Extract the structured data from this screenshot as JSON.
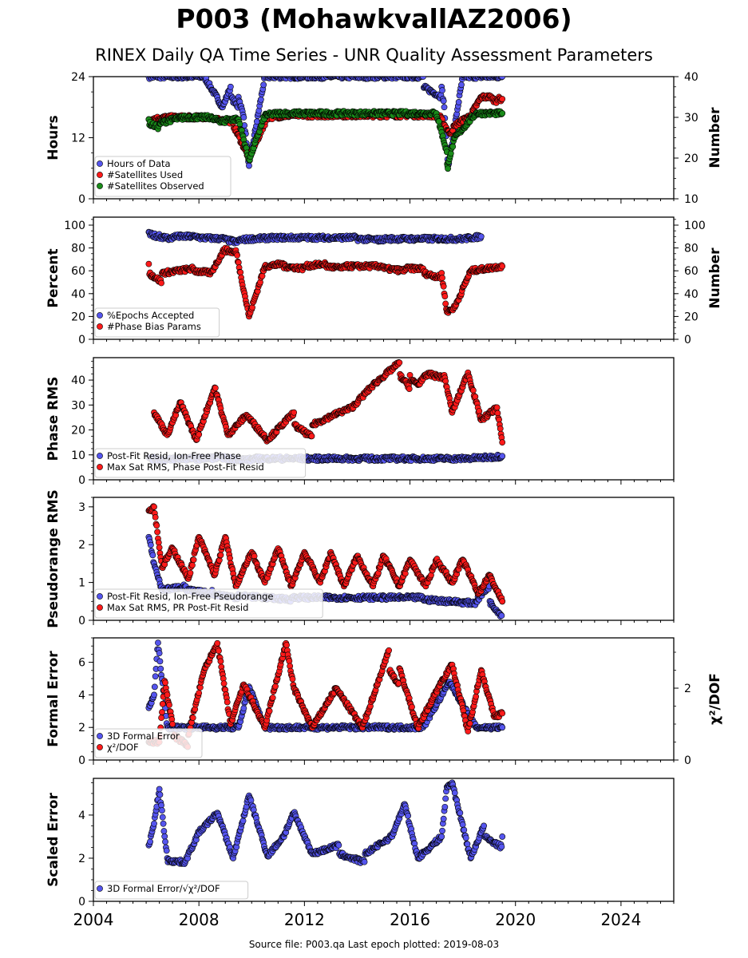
{
  "header": {
    "title": "P003 (MohawkvallAZ2006)",
    "subtitle": "RINEX Daily QA Time Series - UNR Quality Assessment Parameters"
  },
  "footer": {
    "source": "Source file: P003.qa Last epoch plotted: 2019-08-03"
  },
  "colors": {
    "blue": "#5555ee",
    "red": "#ff1a1a",
    "green": "#1a8c1a"
  },
  "chart_data": [
    {
      "type": "scatter",
      "panel": "hours-satellites",
      "ylabel": "Hours",
      "ylim": [
        0,
        24
      ],
      "yticks": [
        0,
        12,
        24
      ],
      "y2label": "Number",
      "y2lim": [
        10,
        40
      ],
      "y2ticks": [
        10,
        20,
        30,
        40
      ],
      "xlim": [
        2004,
        2026
      ],
      "xticks": [
        2004,
        2008,
        2012,
        2016,
        2020,
        2024
      ],
      "legend_position": "lower-left",
      "series": [
        {
          "name": "Hours of Data",
          "axis": "left",
          "color": "#5555ee",
          "x": [
            2006.1,
            2006.8,
            2007.5,
            2008.2,
            2008.9,
            2009.2,
            2009.5,
            2009.7,
            2009.9,
            2010.5,
            2011.5,
            2012.5,
            2013.5,
            2014.5,
            2015.5,
            2016.5,
            2017.2,
            2017.3,
            2017.4,
            2017.5,
            2018.0,
            2018.6,
            2019.2,
            2019.5
          ],
          "y": [
            24,
            24,
            24,
            24,
            18,
            22,
            20,
            16,
            6.5,
            24,
            24,
            24,
            24,
            24,
            24,
            24,
            22,
            18,
            10,
            8,
            24,
            24,
            24,
            24
          ]
        },
        {
          "name": "#Satellites Used",
          "axis": "right",
          "color": "#ff1a1a",
          "x": [
            2006.1,
            2006.8,
            2007.6,
            2008.5,
            2009.2,
            2009.9,
            2010.6,
            2011.5,
            2012.4,
            2013.4,
            2014.3,
            2015.3,
            2016.2,
            2017.1,
            2017.5,
            2017.7,
            2018.3,
            2018.7,
            2018.9,
            2019.1,
            2019.3,
            2019.5
          ],
          "y": [
            29.5,
            30,
            30,
            30,
            29.5,
            20,
            30,
            30.5,
            30.5,
            30.5,
            30.5,
            30.5,
            30.5,
            30.5,
            26,
            28,
            30.5,
            35,
            35,
            35,
            34.5,
            34.5
          ]
        },
        {
          "name": "#Satellites Observed",
          "axis": "right",
          "color": "#1a8c1a",
          "x": [
            2006.1,
            2006.5,
            2007.0,
            2007.5,
            2008.0,
            2008.5,
            2009.0,
            2009.5,
            2009.9,
            2010.5,
            2011.0,
            2012.0,
            2013.0,
            2014.0,
            2015.0,
            2016.0,
            2017.0,
            2017.4,
            2017.45,
            2017.7,
            2018.5,
            2019.0,
            2019.5
          ],
          "y": [
            29.5,
            28.5,
            29.5,
            30,
            30,
            30,
            29.5,
            29.5,
            19.5,
            30.5,
            31,
            31,
            31,
            31,
            31,
            31,
            31,
            21.5,
            19,
            25,
            31,
            31,
            31
          ]
        }
      ]
    },
    {
      "type": "scatter",
      "panel": "epochs-phase-bias",
      "ylabel": "Percent",
      "ylim": [
        0,
        107
      ],
      "yticks": [
        0,
        20,
        40,
        60,
        80,
        100
      ],
      "y2label": "Number",
      "y2lim": [
        0,
        107
      ],
      "y2ticks": [
        0,
        20,
        40,
        60,
        80,
        100
      ],
      "xlim": [
        2004,
        2026
      ],
      "legend_position": "lower-left",
      "series": [
        {
          "name": "%Epochs Accepted",
          "axis": "left",
          "color": "#5555ee",
          "x": [
            2006.1,
            2006.5,
            2007.0,
            2008.0,
            2009.0,
            2009.5,
            2010.0,
            2011.0,
            2012.0,
            2013.0,
            2014.0,
            2015.0,
            2016.0,
            2017.0,
            2018.0,
            2018.7
          ],
          "y": [
            94,
            92,
            90,
            90,
            89,
            87,
            88,
            89,
            89,
            89,
            89,
            88,
            88,
            88,
            88,
            90
          ]
        },
        {
          "name": "#Phase Bias Params",
          "axis": "right",
          "color": "#ff1a1a",
          "x": [
            2006.1,
            2006.6,
            2007.2,
            2007.8,
            2008.5,
            2009.0,
            2009.4,
            2009.9,
            2010.5,
            2011.2,
            2012.0,
            2012.8,
            2013.5,
            2014.3,
            2015.0,
            2015.8,
            2016.5,
            2017.2,
            2017.4,
            2017.7,
            2018.3,
            2018.9,
            2019.5
          ],
          "y": [
            66,
            58,
            60,
            62,
            60,
            80,
            78,
            20,
            64,
            66,
            64,
            66,
            64,
            64,
            64,
            62,
            62,
            58,
            24,
            28,
            60,
            62,
            64
          ]
        }
      ]
    },
    {
      "type": "scatter",
      "panel": "phase-rms",
      "ylabel": "Phase RMS",
      "ylim": [
        0,
        49
      ],
      "yticks": [
        0,
        10,
        20,
        30,
        40
      ],
      "xlim": [
        2004,
        2026
      ],
      "legend_position": "lower-left",
      "series": [
        {
          "name": "Post-Fit Resid, Ion-Free Phase",
          "color": "#5555ee",
          "x": [
            2006.1,
            2007.0,
            2008.0,
            2009.0,
            2010.0,
            2011.0,
            2012.0,
            2013.0,
            2014.0,
            2015.0,
            2016.0,
            2017.0,
            2018.0,
            2019.0,
            2019.5
          ],
          "y": [
            9,
            8.5,
            8.5,
            9,
            8.5,
            8.5,
            8.5,
            8.5,
            8.5,
            8.5,
            8.5,
            8.5,
            8.5,
            9,
            9.5
          ]
        },
        {
          "name": "Max Sat RMS, Phase Post-Fit Resid",
          "color": "#ff1a1a",
          "x": [
            2006.3,
            2006.8,
            2007.3,
            2007.9,
            2008.6,
            2009.1,
            2009.8,
            2010.6,
            2011.6,
            2012.3,
            2013.1,
            2013.8,
            2014.6,
            2015.6,
            2016.0,
            2016.4,
            2016.8,
            2017.3,
            2017.6,
            2018.2,
            2018.7,
            2019.3,
            2019.5
          ],
          "y": [
            27,
            18,
            31,
            16,
            37,
            18,
            26,
            16,
            27,
            22,
            26,
            29,
            38,
            47,
            42,
            40,
            43,
            42,
            27,
            43,
            24,
            29,
            15
          ]
        }
      ]
    },
    {
      "type": "scatter",
      "panel": "pseudorange-rms",
      "ylabel": "Pseudorange RMS",
      "ylim": [
        0,
        3.25
      ],
      "yticks": [
        0,
        1,
        2,
        3
      ],
      "xlim": [
        2004,
        2026
      ],
      "legend_position": "lower-left",
      "series": [
        {
          "name": "Post-Fit Resid, Ion-Free Pseudorange",
          "color": "#5555ee",
          "x": [
            2006.1,
            2006.3,
            2006.6,
            2007.5,
            2008.5,
            2009.5,
            2010.5,
            2011.5,
            2012.5,
            2013.5,
            2014.5,
            2015.5,
            2016.5,
            2017.5,
            2018.5,
            2019.0,
            2019.5
          ],
          "y": [
            2.2,
            1.5,
            0.8,
            0.9,
            0.8,
            0.7,
            0.65,
            0.6,
            0.6,
            0.6,
            0.6,
            0.6,
            0.6,
            0.55,
            0.5,
            0.9,
            0.5
          ]
        },
        {
          "name": "Max Sat RMS, PR Post-Fit Resid",
          "color": "#ff1a1a",
          "x": [
            2006.1,
            2006.3,
            2006.6,
            2007.0,
            2007.6,
            2008.0,
            2008.6,
            2009.0,
            2009.4,
            2010.0,
            2010.5,
            2011.0,
            2011.5,
            2012.0,
            2012.6,
            2013.0,
            2013.5,
            2014.0,
            2014.6,
            2015.0,
            2015.6,
            2016.0,
            2016.6,
            2017.0,
            2017.6,
            2018.0,
            2018.6,
            2019.0,
            2019.5
          ],
          "y": [
            2.9,
            3.0,
            1.4,
            1.9,
            1.1,
            2.2,
            1.2,
            2.2,
            0.9,
            1.8,
            1.0,
            1.9,
            0.9,
            1.8,
            1.0,
            1.8,
            0.9,
            1.7,
            0.9,
            1.7,
            0.9,
            1.6,
            0.9,
            1.6,
            1.0,
            1.6,
            0.7,
            1.2,
            0.5
          ]
        }
      ]
    },
    {
      "type": "scatter",
      "panel": "formal-error",
      "ylabel": "Formal Error",
      "ylim": [
        0,
        7.5
      ],
      "yticks": [
        0,
        2,
        4,
        6
      ],
      "y2label": "χ²/DOF",
      "y2lim": [
        0,
        3.4
      ],
      "y2ticks": [
        0,
        2
      ],
      "xlim": [
        2004,
        2026
      ],
      "legend_position": "lower-left",
      "series": [
        {
          "name": "3D Formal Error",
          "axis": "left",
          "color": "#5555ee",
          "x": [
            2006.1,
            2006.3,
            2006.45,
            2006.8,
            2007.5,
            2008.5,
            2009.5,
            2009.9,
            2010.5,
            2011.5,
            2012.5,
            2013.5,
            2014.5,
            2015.5,
            2016.5,
            2017.5,
            2018.5,
            2019.5
          ],
          "y": [
            3.2,
            4.0,
            7.2,
            2.0,
            2.0,
            2.0,
            2.0,
            4.5,
            2.0,
            2.0,
            2.0,
            2.0,
            2.0,
            2.0,
            2.0,
            4.8,
            2.0,
            2.0
          ]
        },
        {
          "name": "χ²/DOF",
          "axis": "right",
          "color": "#ff1a1a",
          "x": [
            2006.1,
            2006.5,
            2006.7,
            2007.0,
            2007.6,
            2008.2,
            2008.7,
            2009.2,
            2009.7,
            2010.5,
            2011.3,
            2011.6,
            2012.3,
            2013.2,
            2014.2,
            2015.2,
            2015.6,
            2016.3,
            2017.2,
            2017.6,
            2018.2,
            2018.7,
            2019.2,
            2019.5
          ],
          "y": [
            0.5,
            0.5,
            2.2,
            1.0,
            0.7,
            2.5,
            3.25,
            1.0,
            2.1,
            0.9,
            3.25,
            2.0,
            0.9,
            2.0,
            0.9,
            3.05,
            2.55,
            0.9,
            2.2,
            2.65,
            0.8,
            2.5,
            1.2,
            1.3
          ]
        }
      ]
    },
    {
      "type": "scatter",
      "panel": "scaled-error",
      "ylabel": "Scaled Error",
      "ylim": [
        0,
        5.7
      ],
      "yticks": [
        0,
        2,
        4
      ],
      "xlim": [
        2004,
        2026
      ],
      "xticks": [
        2004,
        2008,
        2012,
        2016,
        2020,
        2024
      ],
      "legend_position": "lower-left",
      "series": [
        {
          "name": "3D Formal Error/√χ²/DOF",
          "color": "#5555ee",
          "x": [
            2006.1,
            2006.3,
            2006.5,
            2006.8,
            2007.5,
            2008.0,
            2008.7,
            2009.3,
            2009.9,
            2010.6,
            2011.2,
            2011.6,
            2012.3,
            2013.3,
            2014.3,
            2015.3,
            2015.8,
            2016.3,
            2017.2,
            2017.4,
            2017.6,
            2018.3,
            2018.8,
            2019.5
          ],
          "y": [
            2.6,
            3.6,
            5.2,
            2.0,
            1.9,
            3.2,
            4.1,
            2.0,
            4.9,
            2.1,
            3.0,
            4.1,
            2.2,
            2.6,
            2.2,
            3.0,
            4.5,
            2.0,
            3.0,
            5.3,
            5.5,
            2.0,
            3.5,
            3.0
          ]
        }
      ]
    }
  ]
}
